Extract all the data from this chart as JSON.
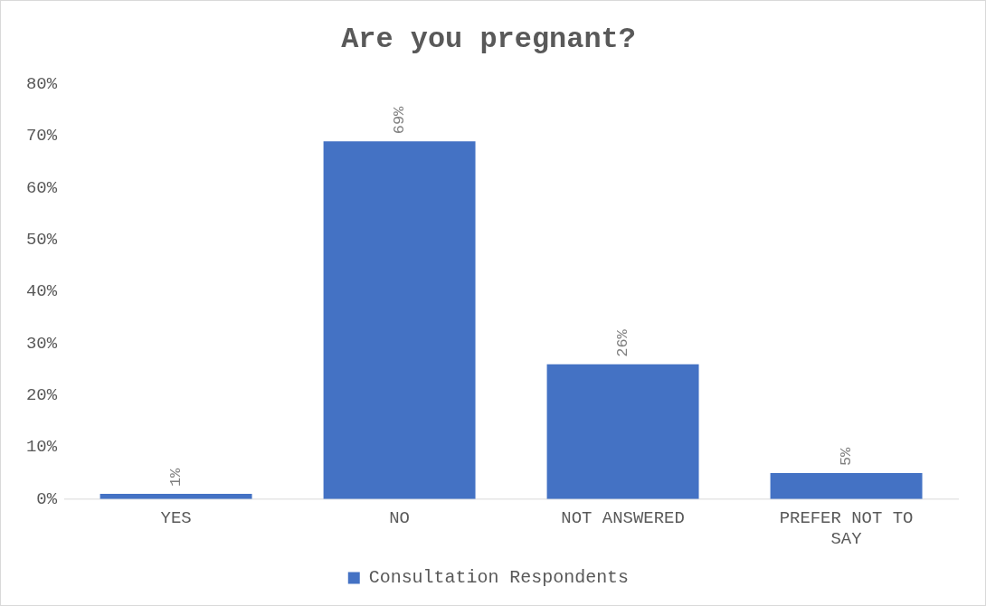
{
  "chart_data": {
    "type": "bar",
    "title": "Are you pregnant?",
    "categories": [
      "YES",
      "NO",
      "NOT ANSWERED",
      "PREFER NOT TO SAY"
    ],
    "series": [
      {
        "name": "Consultation Respondents",
        "color": "#4472c4",
        "values": [
          1,
          69,
          26,
          5
        ],
        "value_labels": [
          "1%",
          "69%",
          "26%",
          "5%"
        ]
      }
    ],
    "ylim": [
      0,
      80
    ],
    "yticks": [
      {
        "value": 0,
        "label": "0%"
      },
      {
        "value": 10,
        "label": "10%"
      },
      {
        "value": 20,
        "label": "20%"
      },
      {
        "value": 30,
        "label": "30%"
      },
      {
        "value": 40,
        "label": "40%"
      },
      {
        "value": 50,
        "label": "50%"
      },
      {
        "value": 60,
        "label": "60%"
      },
      {
        "value": 70,
        "label": "70%"
      },
      {
        "value": 80,
        "label": "80%"
      }
    ],
    "grid": false,
    "legend": "bottom"
  }
}
